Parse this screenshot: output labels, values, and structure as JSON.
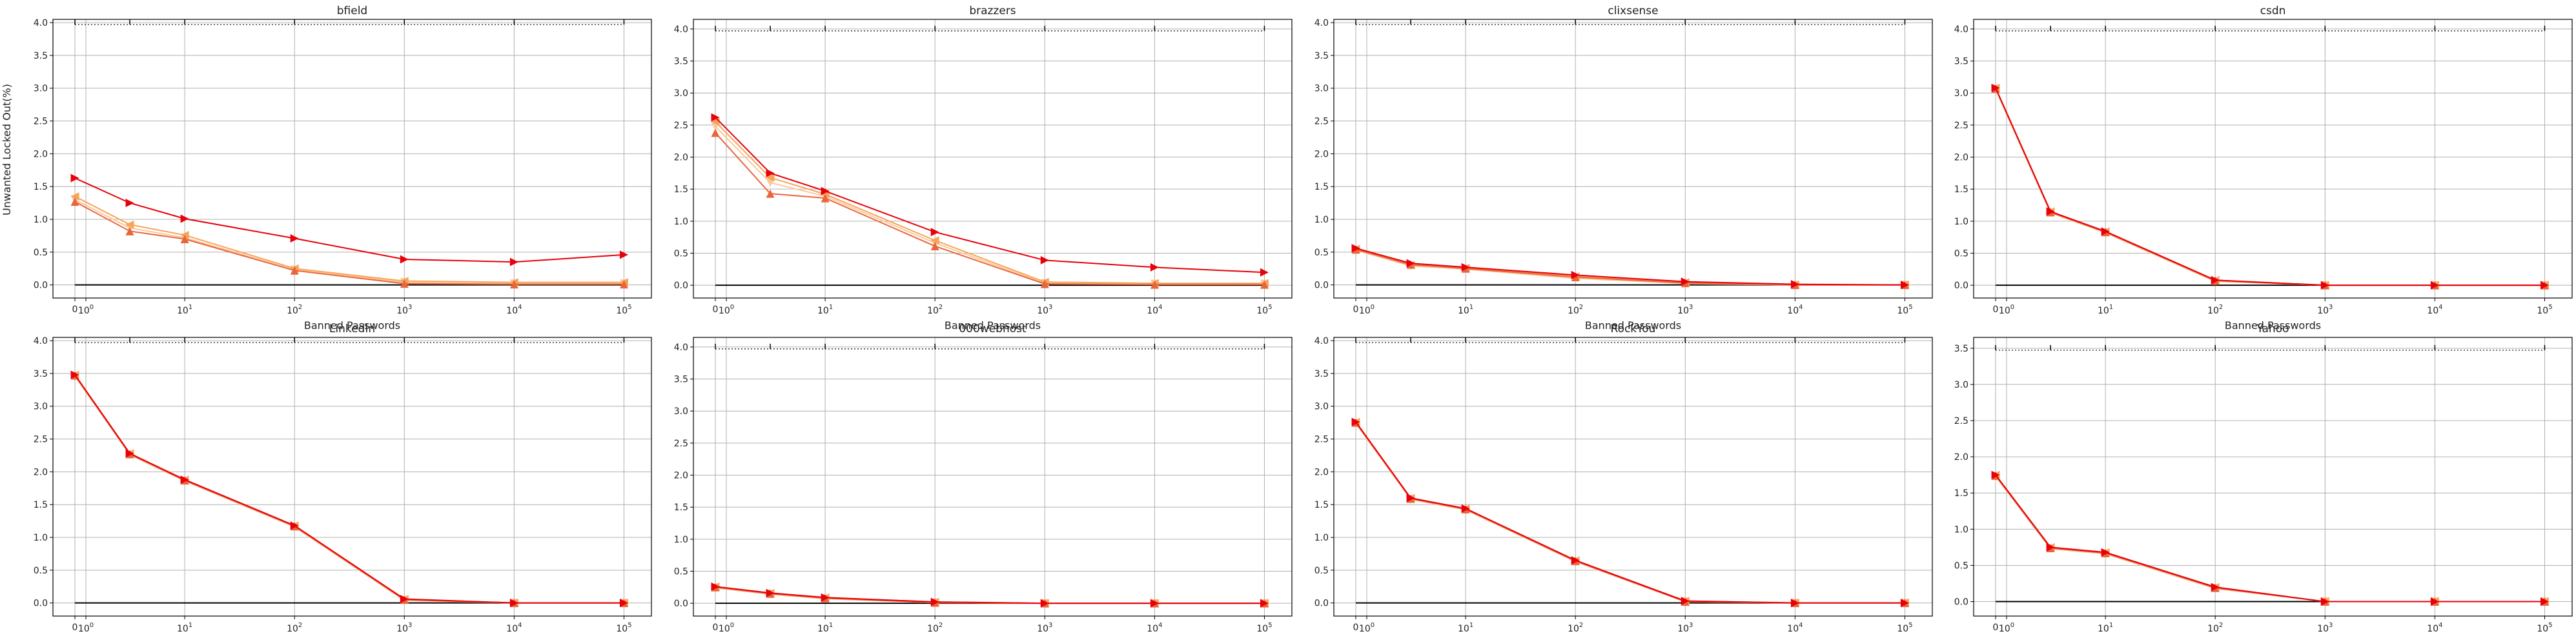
{
  "figure": {
    "ylabel": "Unwanted Locked Out(%)"
  },
  "chart_data": [
    {
      "type": "line",
      "title": "bfield",
      "xlabel": "Banned Passwords",
      "xscale": "symlog",
      "x": [
        0,
        5,
        10,
        100,
        1000,
        10000,
        100000
      ],
      "ylim": [
        -0.2,
        4.05
      ],
      "yticks": [
        0.0,
        0.5,
        1.0,
        1.5,
        2.0,
        2.5,
        3.0,
        3.5,
        4.0
      ],
      "series": [
        {
          "color": "#e8000b",
          "marker": "triangle-right",
          "values": [
            1.63,
            1.25,
            1.01,
            0.71,
            0.39,
            0.35,
            0.46
          ]
        },
        {
          "color": "#e8663c",
          "marker": "triangle-up",
          "values": [
            1.27,
            0.82,
            0.7,
            0.22,
            0.02,
            0.01,
            0.01
          ]
        },
        {
          "color": "#f5a55a",
          "marker": "triangle-left",
          "values": [
            1.35,
            0.92,
            0.76,
            0.25,
            0.06,
            0.04,
            0.04
          ]
        },
        {
          "color": "#fbc79a",
          "marker": "triangle-down",
          "values": [
            1.3,
            0.87,
            0.72,
            0.23,
            0.04,
            0.02,
            0.02
          ]
        }
      ]
    },
    {
      "type": "line",
      "title": "brazzers",
      "xlabel": "Banned Passwords",
      "xscale": "symlog",
      "x": [
        0,
        5,
        10,
        100,
        1000,
        10000,
        100000
      ],
      "ylim": [
        -0.2,
        4.15
      ],
      "yticks": [
        0.0,
        0.5,
        1.0,
        1.5,
        2.0,
        2.5,
        3.0,
        3.5,
        4.0
      ],
      "series": [
        {
          "color": "#e8000b",
          "marker": "triangle-right",
          "values": [
            2.62,
            1.75,
            1.47,
            0.83,
            0.39,
            0.28,
            0.2
          ]
        },
        {
          "color": "#e8663c",
          "marker": "triangle-up",
          "values": [
            2.38,
            1.43,
            1.36,
            0.61,
            0.02,
            0.01,
            0.01
          ]
        },
        {
          "color": "#f5a55a",
          "marker": "triangle-left",
          "values": [
            2.55,
            1.68,
            1.42,
            0.7,
            0.05,
            0.03,
            0.03
          ]
        },
        {
          "color": "#fbc79a",
          "marker": "triangle-down",
          "values": [
            2.48,
            1.6,
            1.39,
            0.66,
            0.03,
            0.02,
            0.02
          ]
        }
      ]
    },
    {
      "type": "line",
      "title": "clixsense",
      "xlabel": "Banned Passwords",
      "xscale": "symlog",
      "x": [
        0,
        5,
        10,
        100,
        1000,
        10000,
        100000
      ],
      "ylim": [
        -0.2,
        4.05
      ],
      "yticks": [
        0.0,
        0.5,
        1.0,
        1.5,
        2.0,
        2.5,
        3.0,
        3.5,
        4.0
      ],
      "series": [
        {
          "color": "#e8000b",
          "marker": "triangle-right",
          "values": [
            0.56,
            0.33,
            0.27,
            0.15,
            0.05,
            0.01,
            0.0
          ]
        },
        {
          "color": "#e8663c",
          "marker": "triangle-up",
          "values": [
            0.54,
            0.31,
            0.25,
            0.12,
            0.03,
            0.0,
            0.0
          ]
        },
        {
          "color": "#f5a55a",
          "marker": "triangle-left",
          "values": [
            0.55,
            0.3,
            0.26,
            0.13,
            0.04,
            0.0,
            0.0
          ]
        },
        {
          "color": "#fbc79a",
          "marker": "triangle-down",
          "values": [
            0.53,
            0.29,
            0.24,
            0.1,
            0.02,
            0.0,
            0.0
          ]
        }
      ]
    },
    {
      "type": "line",
      "title": "csdn",
      "xlabel": "Banned Passwords",
      "xscale": "symlog",
      "x": [
        0,
        5,
        10,
        100,
        1000,
        10000,
        100000
      ],
      "ylim": [
        -0.2,
        4.15
      ],
      "yticks": [
        0.0,
        0.5,
        1.0,
        1.5,
        2.0,
        2.5,
        3.0,
        3.5,
        4.0
      ],
      "series": [
        {
          "color": "#e8000b",
          "marker": "triangle-right",
          "values": [
            3.08,
            1.15,
            0.84,
            0.08,
            0.0,
            0.0,
            0.0
          ]
        },
        {
          "color": "#e8663c",
          "marker": "triangle-up",
          "values": [
            3.07,
            1.14,
            0.83,
            0.07,
            0.0,
            0.0,
            0.0
          ]
        },
        {
          "color": "#f5a55a",
          "marker": "triangle-left",
          "values": [
            3.08,
            1.15,
            0.84,
            0.08,
            0.0,
            0.0,
            0.0
          ]
        },
        {
          "color": "#fbc79a",
          "marker": "triangle-down",
          "values": [
            3.06,
            1.13,
            0.82,
            0.06,
            0.0,
            0.0,
            0.0
          ]
        }
      ]
    },
    {
      "type": "line",
      "title": "LinkedIn",
      "xlabel": "Banned Passwords",
      "xscale": "symlog",
      "x": [
        0,
        5,
        10,
        100,
        1000,
        10000,
        100000
      ],
      "ylim": [
        -0.2,
        4.05
      ],
      "yticks": [
        0.0,
        0.5,
        1.0,
        1.5,
        2.0,
        2.5,
        3.0,
        3.5,
        4.0
      ],
      "series": [
        {
          "color": "#e8000b",
          "marker": "triangle-right",
          "values": [
            3.48,
            2.28,
            1.88,
            1.18,
            0.06,
            0.0,
            0.0
          ]
        },
        {
          "color": "#e8663c",
          "marker": "triangle-up",
          "values": [
            3.47,
            2.27,
            1.87,
            1.17,
            0.05,
            0.0,
            0.0
          ]
        },
        {
          "color": "#f5a55a",
          "marker": "triangle-left",
          "values": [
            3.48,
            2.28,
            1.88,
            1.18,
            0.06,
            0.0,
            0.0
          ]
        },
        {
          "color": "#fbc79a",
          "marker": "triangle-down",
          "values": [
            3.46,
            2.26,
            1.86,
            1.16,
            0.04,
            0.0,
            0.0
          ]
        }
      ]
    },
    {
      "type": "line",
      "title": "000webhost",
      "xlabel": "Banned Passwords",
      "xscale": "symlog",
      "x": [
        0,
        5,
        10,
        100,
        1000,
        10000,
        100000
      ],
      "ylim": [
        -0.2,
        4.15
      ],
      "yticks": [
        0.0,
        0.5,
        1.0,
        1.5,
        2.0,
        2.5,
        3.0,
        3.5,
        4.0
      ],
      "series": [
        {
          "color": "#e8000b",
          "marker": "triangle-right",
          "values": [
            0.26,
            0.16,
            0.09,
            0.02,
            0.0,
            0.0,
            0.0
          ]
        },
        {
          "color": "#e8663c",
          "marker": "triangle-up",
          "values": [
            0.25,
            0.15,
            0.08,
            0.01,
            0.0,
            0.0,
            0.0
          ]
        },
        {
          "color": "#f5a55a",
          "marker": "triangle-left",
          "values": [
            0.26,
            0.16,
            0.09,
            0.02,
            0.0,
            0.0,
            0.0
          ]
        },
        {
          "color": "#fbc79a",
          "marker": "triangle-down",
          "values": [
            0.24,
            0.14,
            0.07,
            0.01,
            0.0,
            0.0,
            0.0
          ]
        }
      ]
    },
    {
      "type": "line",
      "title": "RockYou",
      "xlabel": "Banned Passwords",
      "xscale": "symlog",
      "x": [
        0,
        5,
        10,
        100,
        1000,
        10000,
        100000
      ],
      "ylim": [
        -0.2,
        4.05
      ],
      "yticks": [
        0.0,
        0.5,
        1.0,
        1.5,
        2.0,
        2.5,
        3.0,
        3.5,
        4.0
      ],
      "series": [
        {
          "color": "#e8000b",
          "marker": "triangle-right",
          "values": [
            2.76,
            1.6,
            1.44,
            0.65,
            0.03,
            0.0,
            0.0
          ]
        },
        {
          "color": "#e8663c",
          "marker": "triangle-up",
          "values": [
            2.75,
            1.59,
            1.43,
            0.64,
            0.02,
            0.0,
            0.0
          ]
        },
        {
          "color": "#f5a55a",
          "marker": "triangle-left",
          "values": [
            2.76,
            1.6,
            1.44,
            0.65,
            0.03,
            0.0,
            0.0
          ]
        },
        {
          "color": "#fbc79a",
          "marker": "triangle-down",
          "values": [
            2.74,
            1.58,
            1.42,
            0.63,
            0.02,
            0.0,
            0.0
          ]
        }
      ]
    },
    {
      "type": "line",
      "title": "Yahoo",
      "xlabel": "Banned Passwords",
      "xscale": "symlog",
      "x": [
        0,
        5,
        10,
        100,
        1000,
        10000,
        100000
      ],
      "ylim": [
        -0.2,
        3.65
      ],
      "yticks": [
        0.0,
        0.5,
        1.0,
        1.5,
        2.0,
        2.5,
        3.0,
        3.5
      ],
      "series": [
        {
          "color": "#e8000b",
          "marker": "triangle-right",
          "values": [
            1.75,
            0.75,
            0.68,
            0.2,
            0.0,
            0.0,
            0.0
          ]
        },
        {
          "color": "#e8663c",
          "marker": "triangle-up",
          "values": [
            1.74,
            0.74,
            0.67,
            0.19,
            0.0,
            0.0,
            0.0
          ]
        },
        {
          "color": "#f5a55a",
          "marker": "triangle-left",
          "values": [
            1.75,
            0.75,
            0.68,
            0.2,
            0.0,
            0.0,
            0.0
          ]
        },
        {
          "color": "#fbc79a",
          "marker": "triangle-down",
          "values": [
            1.73,
            0.73,
            0.66,
            0.18,
            0.0,
            0.0,
            0.0
          ]
        }
      ]
    }
  ]
}
